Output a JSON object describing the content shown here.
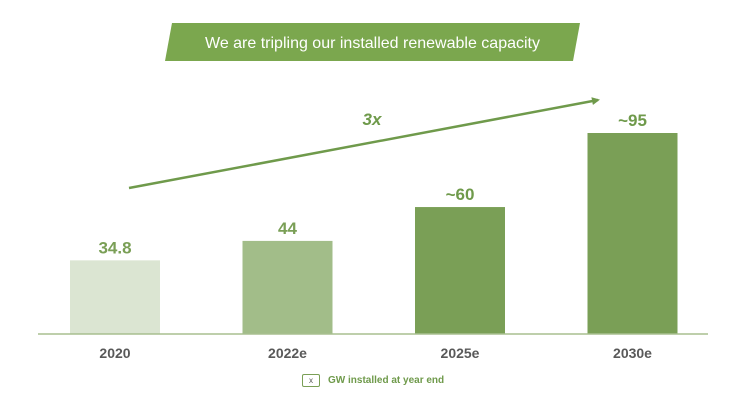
{
  "banner": {
    "title": "We are tripling our installed renewable capacity",
    "color": "#7ba74e"
  },
  "growth": {
    "label": "3x",
    "color": "#6f9a4b"
  },
  "legend": {
    "symbol": "x",
    "text": "GW installed at year end"
  },
  "chart_data": {
    "type": "bar",
    "title": "We are tripling our installed renewable capacity",
    "categories": [
      "2020",
      "2022e",
      "2025e",
      "2030e"
    ],
    "values": [
      34.8,
      44,
      60,
      95
    ],
    "labels": [
      "34.8",
      "44",
      "~60",
      "~95"
    ],
    "colors": [
      "#dbe5d2",
      "#a2bd89",
      "#7a9f56",
      "#7a9f56"
    ],
    "label_colors": [
      "#7a9f56",
      "#7a9f56",
      "#6f9a4b",
      "#6f9a4b"
    ],
    "xlabel": "",
    "ylabel": "",
    "ylim": [
      0,
      95
    ],
    "annotation": "3x",
    "legend": "GW installed at year end"
  }
}
